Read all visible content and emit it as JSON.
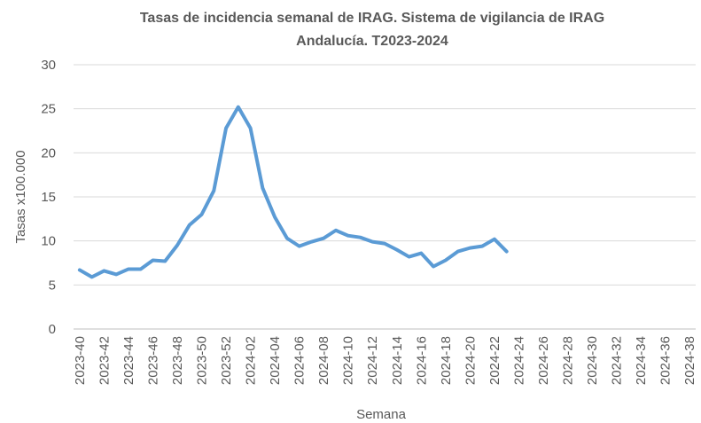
{
  "chart_data": {
    "type": "line",
    "title": [
      "Tasas de incidencia semanal de IRAG. Sistema de vigilancia de IRAG",
      "Andalucía. T2023-2024"
    ],
    "x_label": "Semana",
    "y_label": "Tasas x100.000",
    "categories": [
      "2023-40",
      null,
      "2023-42",
      null,
      "2023-44",
      null,
      "2023-46",
      null,
      "2023-48",
      null,
      "2023-50",
      null,
      "2023-52",
      null,
      "2024-02",
      null,
      "2024-04",
      null,
      "2024-06",
      null,
      "2024-08",
      null,
      "2024-10",
      null,
      "2024-12",
      null,
      "2024-14",
      null,
      "2024-16",
      null,
      "2024-18",
      null,
      "2024-20",
      null,
      "2024-22",
      null,
      "2024-24",
      null,
      "2024-26",
      null,
      "2024-28",
      null,
      "2024-30",
      null,
      "2024-32",
      null,
      "2024-34",
      null,
      "2024-36",
      null,
      "2024-38"
    ],
    "series": [
      {
        "color": "#5b9bd5",
        "values": [
          6.7,
          5.9,
          6.6,
          6.2,
          6.8,
          6.8,
          7.8,
          7.7,
          9.5,
          11.8,
          13.0,
          15.7,
          22.8,
          25.2,
          22.8,
          16.0,
          12.7,
          10.3,
          9.4,
          9.9,
          10.3,
          11.2,
          10.6,
          10.4,
          9.9,
          9.7,
          9.0,
          8.2,
          8.6,
          7.1,
          7.8,
          8.8,
          9.2,
          9.4,
          10.2,
          8.8,
          null,
          null,
          null,
          null,
          null,
          null,
          null,
          null,
          null,
          null,
          null,
          null,
          null,
          null,
          null
        ]
      }
    ],
    "ylim": [
      0,
      30
    ],
    "yticks": [
      0,
      5,
      10,
      15,
      20,
      25,
      30
    ],
    "grid": true
  }
}
